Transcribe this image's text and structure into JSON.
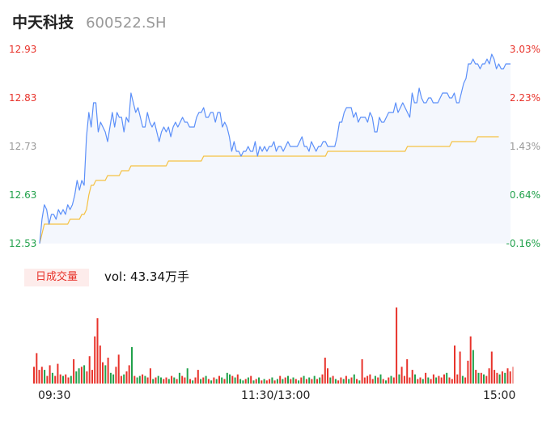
{
  "header": {
    "name": "中天科技",
    "code": "600522.SH"
  },
  "volume_panel": {
    "tag_label": "日成交量",
    "vol_text": "vol: 43.34万手"
  },
  "colors": {
    "price_line": "#5b8ff9",
    "avg_line": "#f5c142",
    "up": "#e8332b",
    "down": "#21a14b",
    "fill": "#f4f7fd"
  },
  "chart_data": [
    {
      "type": "line",
      "xlabel": "",
      "ylabel": "",
      "x_ticks": [
        "09:30",
        "11:30/13:00",
        "15:00"
      ],
      "y_ticks_left": [
        "12.93",
        "12.83",
        "12.73",
        "12.63",
        "12.53"
      ],
      "y_ticks_right": [
        "3.03%",
        "2.23%",
        "1.43%",
        "0.64%",
        "-0.16%"
      ],
      "ylim": [
        12.53,
        12.93
      ],
      "grid": false,
      "series": [
        {
          "role": "price",
          "values": [
            12.53,
            12.58,
            12.61,
            12.6,
            12.57,
            12.59,
            12.59,
            12.58,
            12.6,
            12.59,
            12.6,
            12.59,
            12.61,
            12.6,
            12.61,
            12.63,
            12.66,
            12.64,
            12.66,
            12.65,
            12.75,
            12.8,
            12.77,
            12.82,
            12.82,
            12.76,
            12.78,
            12.77,
            12.76,
            12.74,
            12.77,
            12.8,
            12.77,
            12.8,
            12.79,
            12.79,
            12.76,
            12.79,
            12.78,
            12.84,
            12.82,
            12.8,
            12.81,
            12.79,
            12.77,
            12.77,
            12.8,
            12.78,
            12.77,
            12.78,
            12.76,
            12.74,
            12.76,
            12.77,
            12.76,
            12.77,
            12.75,
            12.77,
            12.78,
            12.77,
            12.78,
            12.79,
            12.78,
            12.78,
            12.77,
            12.77,
            12.77,
            12.79,
            12.8,
            12.8,
            12.81,
            12.79,
            12.79,
            12.8,
            12.8,
            12.78,
            12.8,
            12.8,
            12.77,
            12.78,
            12.77,
            12.75,
            12.72,
            12.74,
            12.72,
            12.72,
            12.71,
            12.72,
            12.72,
            12.73,
            12.72,
            12.72,
            12.74,
            12.71,
            12.73,
            12.72,
            12.73,
            12.72,
            12.73,
            12.73,
            12.74,
            12.72,
            12.73,
            12.73,
            12.72,
            12.73,
            12.74,
            12.73,
            12.73,
            12.73,
            12.73,
            12.74,
            12.75,
            12.73,
            12.73,
            12.72,
            12.74,
            12.73,
            12.72,
            12.73,
            12.73,
            12.74,
            12.74,
            12.73,
            12.73,
            12.73,
            12.73,
            12.75,
            12.78,
            12.78,
            12.8,
            12.81,
            12.81,
            12.81,
            12.79,
            12.8,
            12.78,
            12.79,
            12.79,
            12.79,
            12.78,
            12.8,
            12.79,
            12.76,
            12.76,
            12.79,
            12.78,
            12.78,
            12.79,
            12.8,
            12.8,
            12.8,
            12.82,
            12.8,
            12.81,
            12.82,
            12.81,
            12.8,
            12.79,
            12.84,
            12.82,
            12.82,
            12.85,
            12.83,
            12.82,
            12.82,
            12.83,
            12.83,
            12.82,
            12.82,
            12.82,
            12.83,
            12.84,
            12.84,
            12.84,
            12.83,
            12.83,
            12.84,
            12.82,
            12.82,
            12.84,
            12.86,
            12.87,
            12.9,
            12.9,
            12.91,
            12.9,
            12.9,
            12.89,
            12.9,
            12.9,
            12.91,
            12.9,
            12.92,
            12.91,
            12.89,
            12.9,
            12.89,
            12.89,
            12.9,
            12.9,
            12.9
          ]
        },
        {
          "role": "average",
          "values": [
            12.53,
            12.55,
            12.57,
            12.57,
            12.57,
            12.57,
            12.57,
            12.57,
            12.57,
            12.57,
            12.57,
            12.57,
            12.57,
            12.58,
            12.58,
            12.58,
            12.58,
            12.58,
            12.59,
            12.59,
            12.6,
            12.63,
            12.65,
            12.65,
            12.66,
            12.66,
            12.66,
            12.66,
            12.66,
            12.67,
            12.67,
            12.67,
            12.67,
            12.67,
            12.67,
            12.68,
            12.68,
            12.68,
            12.68,
            12.69,
            12.69,
            12.69,
            12.69,
            12.69,
            12.69,
            12.69,
            12.69,
            12.69,
            12.69,
            12.69,
            12.69,
            12.69,
            12.69,
            12.69,
            12.69,
            12.7,
            12.7,
            12.7,
            12.7,
            12.7,
            12.7,
            12.7,
            12.7,
            12.7,
            12.7,
            12.7,
            12.7,
            12.7,
            12.7,
            12.7,
            12.71,
            12.71,
            12.71,
            12.71,
            12.71,
            12.71,
            12.71,
            12.71,
            12.71,
            12.71,
            12.71,
            12.71,
            12.71,
            12.71,
            12.71,
            12.71,
            12.71,
            12.71,
            12.71,
            12.71,
            12.71,
            12.71,
            12.71,
            12.71,
            12.71,
            12.71,
            12.71,
            12.71,
            12.71,
            12.71,
            12.71,
            12.71,
            12.71,
            12.71,
            12.71,
            12.71,
            12.71,
            12.71,
            12.71,
            12.71,
            12.71,
            12.71,
            12.71,
            12.71,
            12.71,
            12.71,
            12.71,
            12.71,
            12.71,
            12.71,
            12.71,
            12.71,
            12.71,
            12.72,
            12.72,
            12.72,
            12.72,
            12.72,
            12.72,
            12.72,
            12.72,
            12.72,
            12.72,
            12.72,
            12.72,
            12.72,
            12.72,
            12.72,
            12.72,
            12.72,
            12.72,
            12.72,
            12.72,
            12.72,
            12.72,
            12.72,
            12.72,
            12.72,
            12.72,
            12.72,
            12.72,
            12.72,
            12.72,
            12.72,
            12.72,
            12.72,
            12.72,
            12.73,
            12.73,
            12.73,
            12.73,
            12.73,
            12.73,
            12.73,
            12.73,
            12.73,
            12.73,
            12.73,
            12.73,
            12.73,
            12.73,
            12.73,
            12.73,
            12.73,
            12.73,
            12.73,
            12.74,
            12.74,
            12.74,
            12.74,
            12.74,
            12.74,
            12.74,
            12.74,
            12.74,
            12.74,
            12.74,
            12.75,
            12.75,
            12.75,
            12.75,
            12.75,
            12.75,
            12.75,
            12.75,
            12.75,
            12.75
          ]
        }
      ]
    },
    {
      "type": "bar",
      "xlabel": "",
      "ylabel": "",
      "ylim": [
        0,
        100
      ],
      "bars": [
        {
          "v": 22,
          "d": "u"
        },
        {
          "v": 40,
          "d": "u"
        },
        {
          "v": 18,
          "d": "u"
        },
        {
          "v": 22,
          "d": "u"
        },
        {
          "v": 18,
          "d": "d"
        },
        {
          "v": 10,
          "d": "u"
        },
        {
          "v": 24,
          "d": "u"
        },
        {
          "v": 14,
          "d": "d"
        },
        {
          "v": 10,
          "d": "u"
        },
        {
          "v": 26,
          "d": "u"
        },
        {
          "v": 12,
          "d": "u"
        },
        {
          "v": 10,
          "d": "d"
        },
        {
          "v": 12,
          "d": "u"
        },
        {
          "v": 8,
          "d": "u"
        },
        {
          "v": 10,
          "d": "d"
        },
        {
          "v": 32,
          "d": "u"
        },
        {
          "v": 16,
          "d": "d"
        },
        {
          "v": 20,
          "d": "d"
        },
        {
          "v": 22,
          "d": "u"
        },
        {
          "v": 24,
          "d": "d"
        },
        {
          "v": 16,
          "d": "u"
        },
        {
          "v": 36,
          "d": "u"
        },
        {
          "v": 18,
          "d": "u"
        },
        {
          "v": 62,
          "d": "u"
        },
        {
          "v": 86,
          "d": "u"
        },
        {
          "v": 50,
          "d": "u"
        },
        {
          "v": 28,
          "d": "u"
        },
        {
          "v": 24,
          "d": "d"
        },
        {
          "v": 34,
          "d": "u"
        },
        {
          "v": 14,
          "d": "d"
        },
        {
          "v": 12,
          "d": "d"
        },
        {
          "v": 22,
          "d": "u"
        },
        {
          "v": 38,
          "d": "u"
        },
        {
          "v": 10,
          "d": "u"
        },
        {
          "v": 12,
          "d": "d"
        },
        {
          "v": 16,
          "d": "u"
        },
        {
          "v": 24,
          "d": "u"
        },
        {
          "v": 48,
          "d": "d"
        },
        {
          "v": 10,
          "d": "u"
        },
        {
          "v": 8,
          "d": "d"
        },
        {
          "v": 10,
          "d": "d"
        },
        {
          "v": 12,
          "d": "u"
        },
        {
          "v": 10,
          "d": "d"
        },
        {
          "v": 8,
          "d": "u"
        },
        {
          "v": 20,
          "d": "u"
        },
        {
          "v": 6,
          "d": "d"
        },
        {
          "v": 8,
          "d": "u"
        },
        {
          "v": 10,
          "d": "d"
        },
        {
          "v": 8,
          "d": "d"
        },
        {
          "v": 6,
          "d": "u"
        },
        {
          "v": 8,
          "d": "u"
        },
        {
          "v": 6,
          "d": "d"
        },
        {
          "v": 10,
          "d": "u"
        },
        {
          "v": 8,
          "d": "d"
        },
        {
          "v": 6,
          "d": "u"
        },
        {
          "v": 14,
          "d": "d"
        },
        {
          "v": 10,
          "d": "u"
        },
        {
          "v": 8,
          "d": "u"
        },
        {
          "v": 20,
          "d": "d"
        },
        {
          "v": 6,
          "d": "u"
        },
        {
          "v": 4,
          "d": "d"
        },
        {
          "v": 8,
          "d": "u"
        },
        {
          "v": 18,
          "d": "u"
        },
        {
          "v": 6,
          "d": "d"
        },
        {
          "v": 8,
          "d": "u"
        },
        {
          "v": 10,
          "d": "d"
        },
        {
          "v": 6,
          "d": "u"
        },
        {
          "v": 4,
          "d": "d"
        },
        {
          "v": 8,
          "d": "u"
        },
        {
          "v": 6,
          "d": "d"
        },
        {
          "v": 10,
          "d": "u"
        },
        {
          "v": 8,
          "d": "d"
        },
        {
          "v": 6,
          "d": "u"
        },
        {
          "v": 14,
          "d": "d"
        },
        {
          "v": 12,
          "d": "d"
        },
        {
          "v": 10,
          "d": "u"
        },
        {
          "v": 8,
          "d": "d"
        },
        {
          "v": 12,
          "d": "u"
        },
        {
          "v": 6,
          "d": "d"
        },
        {
          "v": 4,
          "d": "d"
        },
        {
          "v": 6,
          "d": "u"
        },
        {
          "v": 8,
          "d": "d"
        },
        {
          "v": 10,
          "d": "u"
        },
        {
          "v": 4,
          "d": "d"
        },
        {
          "v": 6,
          "d": "u"
        },
        {
          "v": 8,
          "d": "d"
        },
        {
          "v": 4,
          "d": "u"
        },
        {
          "v": 6,
          "d": "d"
        },
        {
          "v": 4,
          "d": "u"
        },
        {
          "v": 6,
          "d": "u"
        },
        {
          "v": 8,
          "d": "d"
        },
        {
          "v": 4,
          "d": "u"
        },
        {
          "v": 6,
          "d": "d"
        },
        {
          "v": 10,
          "d": "u"
        },
        {
          "v": 6,
          "d": "d"
        },
        {
          "v": 8,
          "d": "u"
        },
        {
          "v": 10,
          "d": "d"
        },
        {
          "v": 6,
          "d": "u"
        },
        {
          "v": 8,
          "d": "d"
        },
        {
          "v": 6,
          "d": "u"
        },
        {
          "v": 4,
          "d": "d"
        },
        {
          "v": 8,
          "d": "u"
        },
        {
          "v": 10,
          "d": "d"
        },
        {
          "v": 6,
          "d": "u"
        },
        {
          "v": 8,
          "d": "d"
        },
        {
          "v": 6,
          "d": "u"
        },
        {
          "v": 10,
          "d": "d"
        },
        {
          "v": 6,
          "d": "u"
        },
        {
          "v": 8,
          "d": "d"
        },
        {
          "v": 12,
          "d": "u"
        },
        {
          "v": 34,
          "d": "u"
        },
        {
          "v": 20,
          "d": "u"
        },
        {
          "v": 8,
          "d": "d"
        },
        {
          "v": 10,
          "d": "u"
        },
        {
          "v": 6,
          "d": "d"
        },
        {
          "v": 4,
          "d": "u"
        },
        {
          "v": 8,
          "d": "u"
        },
        {
          "v": 6,
          "d": "d"
        },
        {
          "v": 10,
          "d": "u"
        },
        {
          "v": 6,
          "d": "d"
        },
        {
          "v": 8,
          "d": "u"
        },
        {
          "v": 12,
          "d": "d"
        },
        {
          "v": 6,
          "d": "u"
        },
        {
          "v": 4,
          "d": "d"
        },
        {
          "v": 32,
          "d": "u"
        },
        {
          "v": 8,
          "d": "u"
        },
        {
          "v": 10,
          "d": "u"
        },
        {
          "v": 12,
          "d": "u"
        },
        {
          "v": 6,
          "d": "u"
        },
        {
          "v": 10,
          "d": "d"
        },
        {
          "v": 8,
          "d": "u"
        },
        {
          "v": 12,
          "d": "d"
        },
        {
          "v": 6,
          "d": "u"
        },
        {
          "v": 4,
          "d": "d"
        },
        {
          "v": 8,
          "d": "u"
        },
        {
          "v": 10,
          "d": "d"
        },
        {
          "v": 8,
          "d": "u"
        },
        {
          "v": 100,
          "d": "u"
        },
        {
          "v": 12,
          "d": "d"
        },
        {
          "v": 22,
          "d": "u"
        },
        {
          "v": 10,
          "d": "u"
        },
        {
          "v": 32,
          "d": "u"
        },
        {
          "v": 8,
          "d": "u"
        },
        {
          "v": 18,
          "d": "u"
        },
        {
          "v": 12,
          "d": "d"
        },
        {
          "v": 6,
          "d": "u"
        },
        {
          "v": 8,
          "d": "u"
        },
        {
          "v": 6,
          "d": "d"
        },
        {
          "v": 14,
          "d": "u"
        },
        {
          "v": 8,
          "d": "d"
        },
        {
          "v": 6,
          "d": "u"
        },
        {
          "v": 12,
          "d": "u"
        },
        {
          "v": 8,
          "d": "d"
        },
        {
          "v": 10,
          "d": "u"
        },
        {
          "v": 8,
          "d": "u"
        },
        {
          "v": 12,
          "d": "u"
        },
        {
          "v": 14,
          "d": "d"
        },
        {
          "v": 8,
          "d": "u"
        },
        {
          "v": 6,
          "d": "u"
        },
        {
          "v": 50,
          "d": "u"
        },
        {
          "v": 12,
          "d": "u"
        },
        {
          "v": 42,
          "d": "u"
        },
        {
          "v": 10,
          "d": "d"
        },
        {
          "v": 8,
          "d": "u"
        },
        {
          "v": 30,
          "d": "u"
        },
        {
          "v": 62,
          "d": "u"
        },
        {
          "v": 44,
          "d": "d"
        },
        {
          "v": 18,
          "d": "u"
        },
        {
          "v": 14,
          "d": "d"
        },
        {
          "v": 14,
          "d": "u"
        },
        {
          "v": 12,
          "d": "d"
        },
        {
          "v": 10,
          "d": "u"
        },
        {
          "v": 20,
          "d": "u"
        },
        {
          "v": 42,
          "d": "u"
        },
        {
          "v": 18,
          "d": "u"
        },
        {
          "v": 14,
          "d": "u"
        },
        {
          "v": 12,
          "d": "d"
        },
        {
          "v": 16,
          "d": "u"
        },
        {
          "v": 14,
          "d": "d"
        },
        {
          "v": 20,
          "d": "u"
        },
        {
          "v": 16,
          "d": "u"
        },
        {
          "v": 22,
          "d": "n"
        }
      ]
    }
  ]
}
